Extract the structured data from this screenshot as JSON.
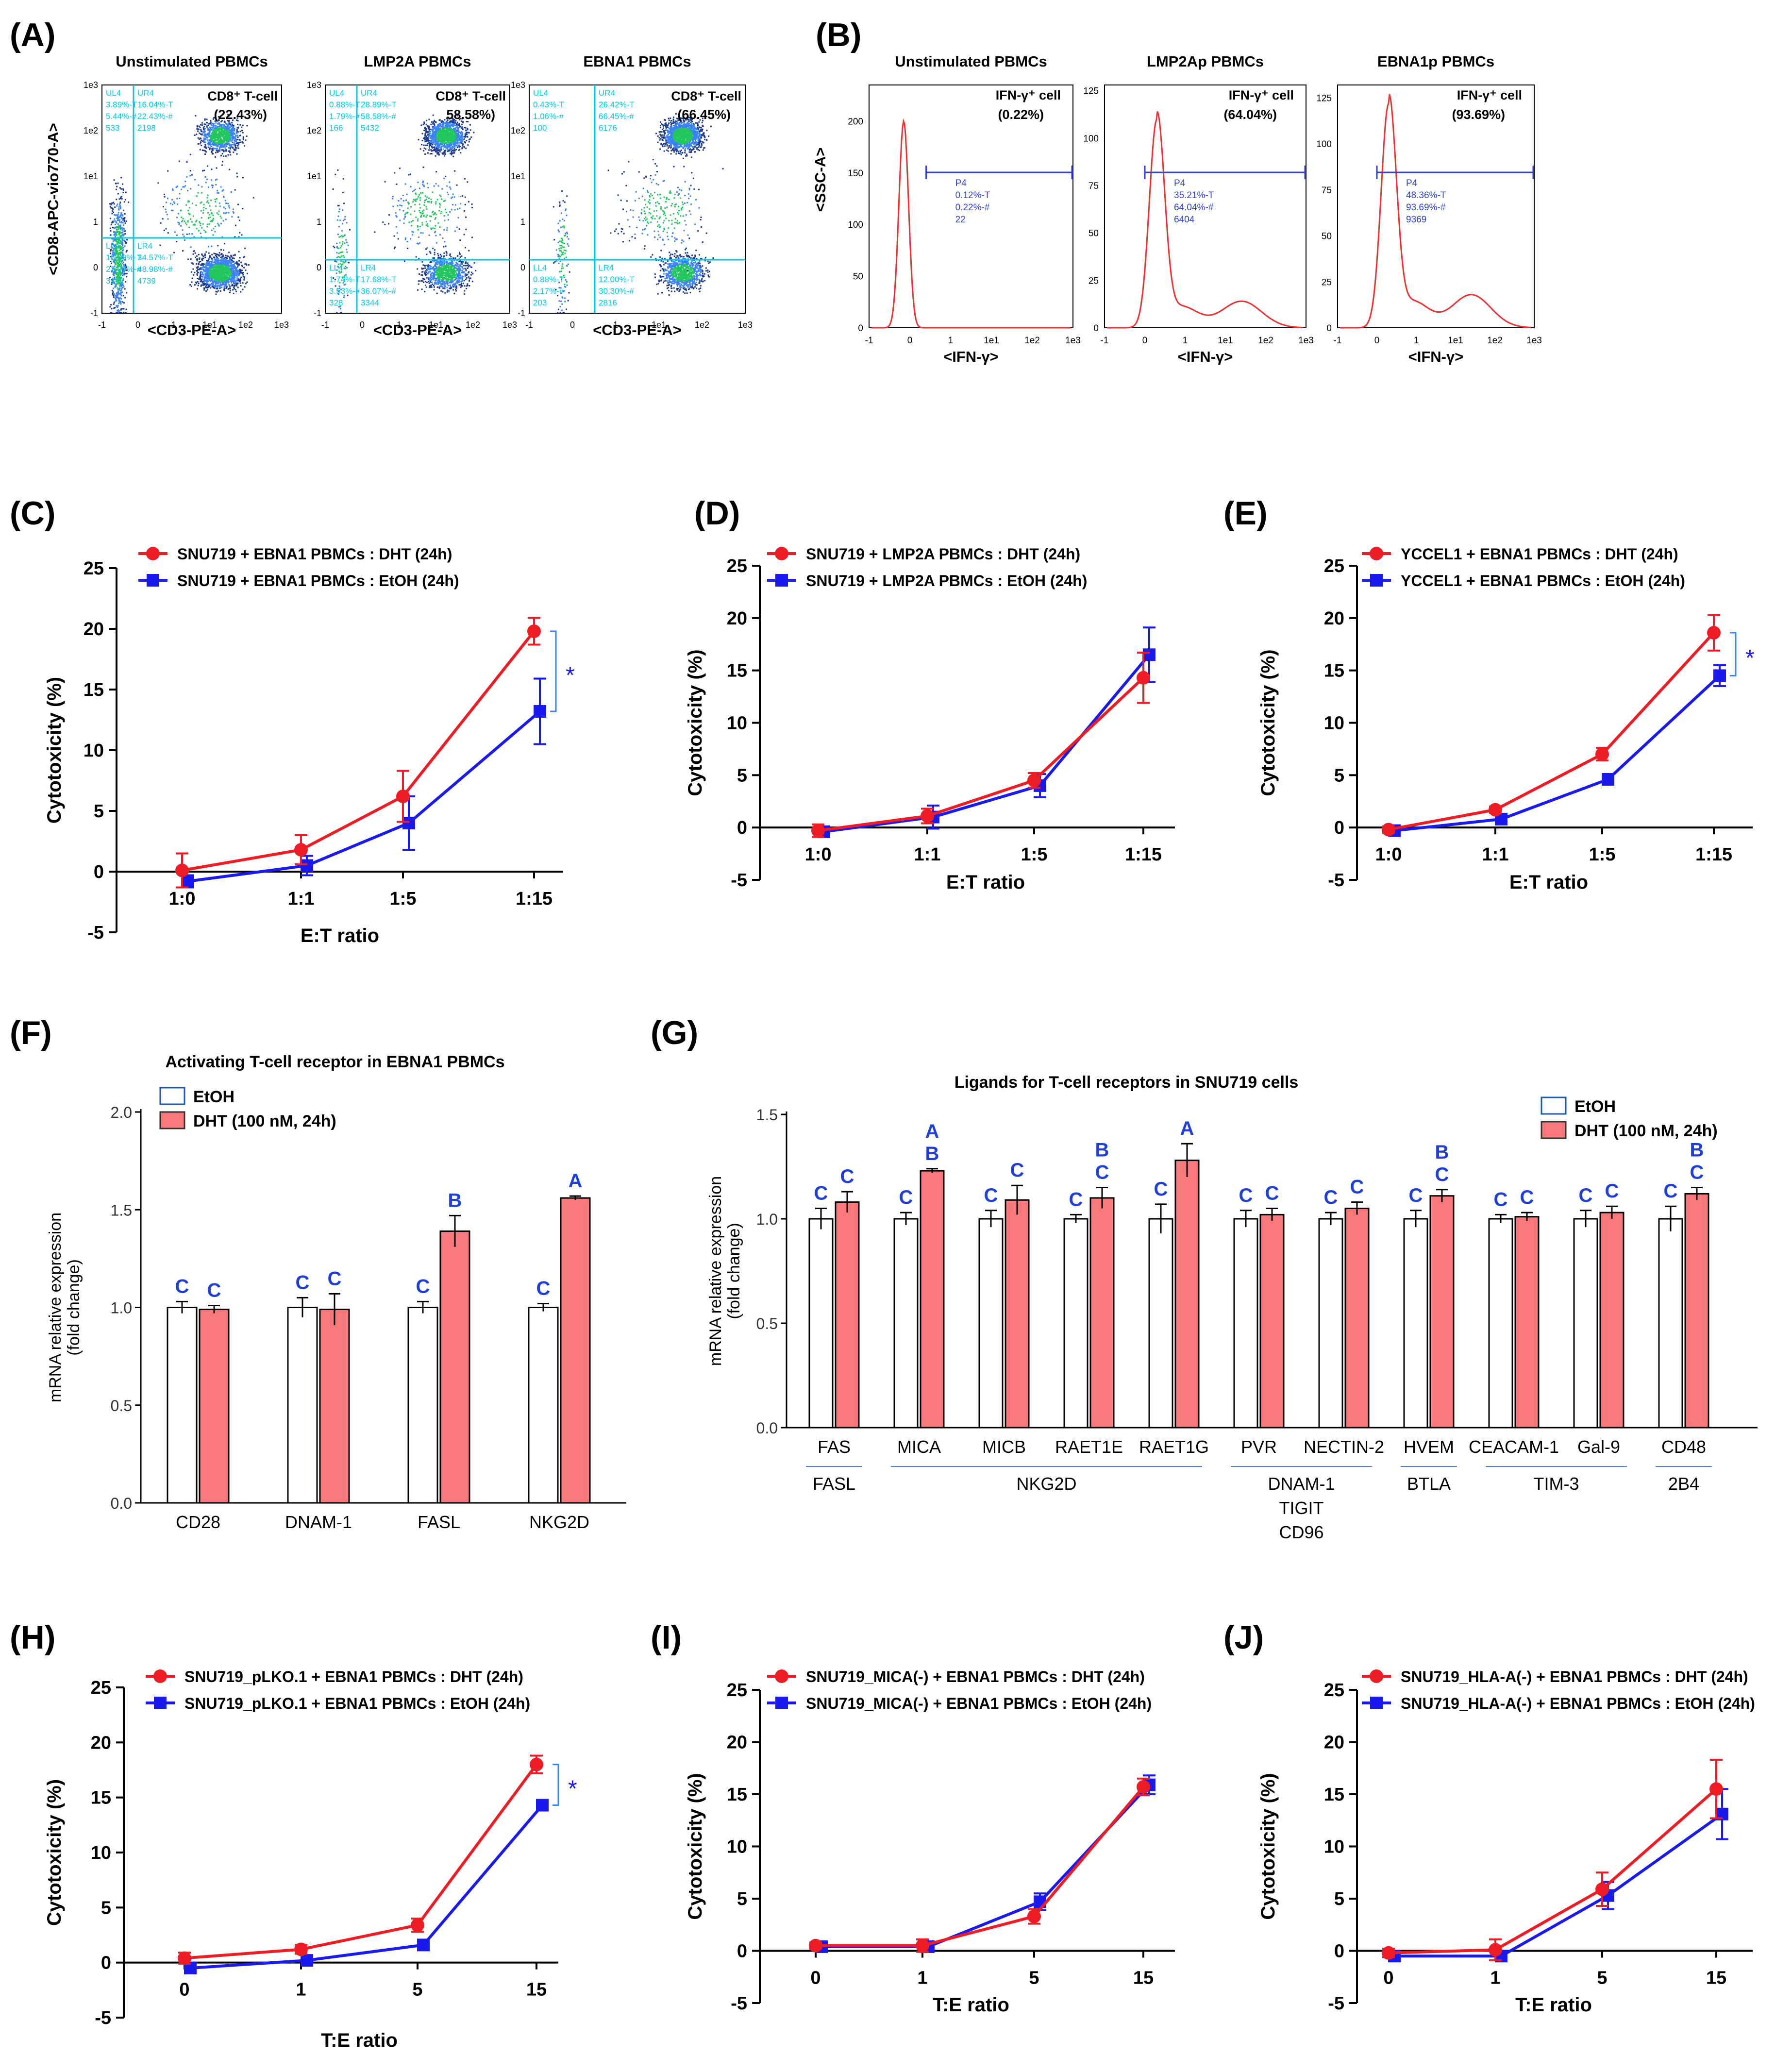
{
  "colors": {
    "red": "#ee1c24",
    "blue": "#1a1aee",
    "cyan": "#00c8e6",
    "bar_red": "#f7797b",
    "letter_blue": "#1f3fd8",
    "hist_red": "#f03030"
  },
  "A": {
    "label": "(A)",
    "panels": [
      {
        "title": "Unstimulated PBMCs",
        "gate_title": "CD8⁺ T-cell",
        "gate_value": "(22.43%)",
        "ul": [
          "UL4",
          "3.89%-T",
          "5.44%-#",
          "533"
        ],
        "ur": [
          "UR4",
          "16.04%-T",
          "22.43%-#",
          "2198"
        ],
        "ll": [
          "LL4",
          "16.09%-T",
          "23.07%-#",
          "3171"
        ],
        "lr": [
          "LR4",
          "34.57%-T",
          "48.98%-#",
          "4739"
        ]
      },
      {
        "title": "LMP2A PBMCs",
        "gate_title": "CD8⁺ T-cell",
        "gate_value": "58.58%)",
        "ul": [
          "UL4",
          "0.88%-T",
          "1.79%-#",
          "166"
        ],
        "ur": [
          "UR4",
          "28.89%-T",
          "58.58%-#",
          "5432"
        ],
        "ll": [
          "LL4",
          "1.74%-T",
          "3.53%-#",
          "328"
        ],
        "lr": [
          "LR4",
          "17.68%-T",
          "36.07%-#",
          "3344"
        ]
      },
      {
        "title": "EBNA1 PBMCs",
        "gate_title": "CD8⁺ T-cell",
        "gate_value": "(66.45%)",
        "ul": [
          "UL4",
          "0.43%-T",
          "1.06%-#",
          "100"
        ],
        "ur": [
          "UR4",
          "26.42%-T",
          "66.45%-#",
          "6176"
        ],
        "ll": [
          "LL4",
          "0.88%-T",
          "2.17%-#",
          "203"
        ],
        "lr": [
          "LR4",
          "12.00%-T",
          "30.30%-#",
          "2816"
        ]
      }
    ],
    "ylabel": "<CD8-APC-vio770-A>",
    "xlabel": "<CD3-PE-A>",
    "x_ticks": [
      "-1",
      "0",
      "1",
      "1e1",
      "1e2",
      "1e3"
    ],
    "y_ticks": [
      "-1",
      "0",
      "1",
      "1e1",
      "1e2",
      "1e3"
    ]
  },
  "B": {
    "label": "(B)",
    "panels": [
      {
        "title": "Unstimulated PBMCs",
        "gate_title": "IFN-γ⁺ cell",
        "gate_value": "(0.22%)",
        "gate_info": [
          "P4",
          "0.12%-T",
          "0.22%-#",
          "22"
        ],
        "y_ticks": [
          "0",
          "50",
          "100",
          "150",
          "200"
        ],
        "ymax": 235,
        "peak": 200,
        "shoulder": 0
      },
      {
        "title": "LMP2Ap PBMCs",
        "gate_title": "IFN-γ⁺ cell",
        "gate_value": "(64.04%)",
        "gate_info": [
          "P4",
          "35.21%-T",
          "64.04%-#",
          "6404"
        ],
        "y_ticks": [
          "0",
          "25",
          "50",
          "75",
          "100",
          "125"
        ],
        "ymax": 128,
        "peak": 110,
        "shoulder": 14
      },
      {
        "title": "EBNA1p PBMCs",
        "gate_title": "IFN-γ⁺ cell",
        "gate_value": "(93.69%)",
        "gate_info": [
          "P4",
          "48.36%-T",
          "93.69%-#",
          "9369"
        ],
        "y_ticks": [
          "0",
          "25",
          "50",
          "75",
          "100",
          "125"
        ],
        "ymax": 132,
        "peak": 122,
        "shoulder": 18
      }
    ],
    "ylabel": "<SSC-A>",
    "xlabel": "<IFN-γ>",
    "x_ticks": [
      "-1",
      "0",
      "1",
      "1e1",
      "1e2",
      "1e3"
    ]
  },
  "chart_data": [
    {
      "panel": "(C)",
      "type": "line",
      "x": [
        "1:0",
        "1:1",
        "1:5",
        "1:15"
      ],
      "xlabel": "E:T ratio",
      "ylabel": "Cytotoxicity (%)",
      "ylim": [
        -5,
        25
      ],
      "y_ticks": [
        "-5",
        "0",
        "5",
        "10",
        "15",
        "20",
        "25"
      ],
      "sig": "*",
      "series": [
        {
          "name": "SNU719 + EBNA1 PBMCs : DHT (24h)",
          "color": "red",
          "values": [
            0.1,
            1.8,
            6.2,
            19.8
          ],
          "err": [
            1.4,
            1.2,
            2.1,
            1.1
          ]
        },
        {
          "name": "SNU719 + EBNA1 PBMCs : EtOH (24h)",
          "color": "blue",
          "values": [
            -0.8,
            0.5,
            4.0,
            13.2
          ],
          "err": [
            0.5,
            0.8,
            2.2,
            2.7
          ]
        }
      ]
    },
    {
      "panel": "(D)",
      "type": "line",
      "x": [
        "1:0",
        "1:1",
        "1:5",
        "1:15"
      ],
      "xlabel": "E:T ratio",
      "ylabel": "Cytotoxicity (%)",
      "ylim": [
        -5,
        25
      ],
      "y_ticks": [
        "-5",
        "0",
        "5",
        "10",
        "15",
        "20",
        "25"
      ],
      "sig": "",
      "series": [
        {
          "name": "SNU719 + LMP2A PBMCs : DHT (24h)",
          "color": "red",
          "values": [
            -0.3,
            1.1,
            4.5,
            14.3
          ],
          "err": [
            0.6,
            0.7,
            0.7,
            2.4
          ]
        },
        {
          "name": "SNU719 + LMP2A PBMCs : EtOH (24h)",
          "color": "blue",
          "values": [
            -0.4,
            1.0,
            4.0,
            16.5
          ],
          "err": [
            0.5,
            1.1,
            1.1,
            2.6
          ]
        }
      ]
    },
    {
      "panel": "(E)",
      "type": "line",
      "x": [
        "1:0",
        "1:1",
        "1:5",
        "1:15"
      ],
      "xlabel": "E:T ratio",
      "ylabel": "Cytotoxicity (%)",
      "ylim": [
        -5,
        25
      ],
      "y_ticks": [
        "-5",
        "0",
        "5",
        "10",
        "15",
        "20",
        "25"
      ],
      "sig": "*",
      "series": [
        {
          "name": "YCCEL1 + EBNA1 PBMCs : DHT (24h)",
          "color": "red",
          "values": [
            -0.2,
            1.7,
            7.0,
            18.6
          ],
          "err": [
            0.3,
            0.3,
            0.6,
            1.7
          ]
        },
        {
          "name": "YCCEL1 + EBNA1 PBMCs : EtOH (24h)",
          "color": "blue",
          "values": [
            -0.3,
            0.8,
            4.6,
            14.5
          ],
          "err": [
            0.3,
            0.3,
            0.4,
            1.0
          ]
        }
      ]
    },
    {
      "panel": "(F)",
      "type": "bar",
      "title": "Activating T-cell receptor in EBNA1 PBMCs",
      "categories": [
        "CD28",
        "DNAM-1",
        "FASL",
        "NKG2D"
      ],
      "ylabel": "mRNA relative expression (fold change)",
      "ylim": [
        0,
        2.0
      ],
      "y_ticks": [
        "0.0",
        "0.5",
        "1.0",
        "1.5",
        "2.0"
      ],
      "legend": [
        "EtOH",
        "DHT (100 nM, 24h)"
      ],
      "series": [
        {
          "name": "EtOH",
          "values": [
            1.0,
            1.0,
            1.0,
            1.0
          ],
          "err": [
            0.03,
            0.05,
            0.03,
            0.02
          ],
          "letters": [
            "C",
            "C",
            "C",
            "C"
          ]
        },
        {
          "name": "DHT (100 nM, 24h)",
          "values": [
            0.99,
            0.99,
            1.39,
            1.56
          ],
          "err": [
            0.02,
            0.08,
            0.08,
            0.01
          ],
          "letters": [
            "C",
            "C",
            "B",
            "A"
          ]
        }
      ]
    },
    {
      "panel": "(G)",
      "type": "bar",
      "title": "Ligands for T-cell receptors in SNU719 cells",
      "categories": [
        "FAS",
        "MICA",
        "MICB",
        "RAET1E",
        "RAET1G",
        "PVR",
        "NECTIN-2",
        "HVEM",
        "CEACAM-1",
        "Gal-9",
        "CD48"
      ],
      "ylabel": "mRNA relative expression (fold change)",
      "ylim": [
        0,
        1.5
      ],
      "y_ticks": [
        "0.0",
        "0.5",
        "1.0",
        "1.5"
      ],
      "legend": [
        "EtOH",
        "DHT (100 nM, 24h)"
      ],
      "groups": [
        {
          "label": "FASL",
          "lines": [
            "FASL"
          ],
          "from": 0,
          "to": 0
        },
        {
          "label": "NKG2D",
          "lines": [
            "NKG2D"
          ],
          "from": 1,
          "to": 4
        },
        {
          "label": "DNAM-1 TIGIT CD96",
          "lines": [
            "DNAM-1",
            "TIGIT",
            "CD96"
          ],
          "from": 5,
          "to": 6
        },
        {
          "label": "BTLA",
          "lines": [
            "BTLA"
          ],
          "from": 7,
          "to": 7
        },
        {
          "label": "TIM-3",
          "lines": [
            "TIM-3"
          ],
          "from": 8,
          "to": 9
        },
        {
          "label": "2B4",
          "lines": [
            "2B4"
          ],
          "from": 10,
          "to": 10
        }
      ],
      "series": [
        {
          "name": "EtOH",
          "values": [
            1.0,
            1.0,
            1.0,
            1.0,
            1.0,
            1.0,
            1.0,
            1.0,
            1.0,
            1.0,
            1.0
          ],
          "err": [
            0.05,
            0.03,
            0.04,
            0.02,
            0.07,
            0.04,
            0.03,
            0.04,
            0.02,
            0.04,
            0.06
          ],
          "letters": [
            "C",
            "C",
            "C",
            "C",
            "C",
            "C",
            "C",
            "C",
            "C",
            "C",
            "C"
          ]
        },
        {
          "name": "DHT (100 nM, 24h)",
          "values": [
            1.08,
            1.23,
            1.09,
            1.1,
            1.28,
            1.02,
            1.05,
            1.11,
            1.01,
            1.03,
            1.12
          ],
          "err": [
            0.05,
            0.01,
            0.07,
            0.05,
            0.08,
            0.03,
            0.03,
            0.03,
            0.02,
            0.03,
            0.03
          ],
          "letters": [
            "C",
            "A B",
            "C",
            "B C",
            "A",
            "C",
            "C",
            "B C",
            "C",
            "C",
            "B C"
          ]
        }
      ]
    },
    {
      "panel": "(H)",
      "type": "line",
      "x": [
        "0",
        "1",
        "5",
        "15"
      ],
      "xlabel": "T:E ratio",
      "ylabel": "Cytotoxicity (%)",
      "ylim": [
        -5,
        25
      ],
      "y_ticks": [
        "-5",
        "0",
        "5",
        "10",
        "15",
        "20",
        "25"
      ],
      "sig": "*",
      "series": [
        {
          "name": "SNU719_pLKO.1 + EBNA1 PBMCs : DHT (24h)",
          "color": "red",
          "values": [
            0.4,
            1.2,
            3.4,
            18.0
          ],
          "err": [
            0.5,
            0.4,
            0.6,
            0.8
          ]
        },
        {
          "name": "SNU719_pLKO.1 + EBNA1 PBMCs : EtOH (24h)",
          "color": "blue",
          "values": [
            -0.5,
            0.2,
            1.6,
            14.3
          ],
          "err": [
            0.3,
            0.3,
            0.3,
            0.4
          ]
        }
      ]
    },
    {
      "panel": "(I)",
      "type": "line",
      "x": [
        "0",
        "1",
        "5",
        "15"
      ],
      "xlabel": "T:E ratio",
      "ylabel": "Cytotoxicity (%)",
      "ylim": [
        -5,
        25
      ],
      "y_ticks": [
        "-5",
        "0",
        "5",
        "10",
        "15",
        "20",
        "25"
      ],
      "sig": "",
      "series": [
        {
          "name": "SNU719_MICA(-) + EBNA1 PBMCs : DHT (24h)",
          "color": "red",
          "values": [
            0.5,
            0.5,
            3.3,
            15.7
          ],
          "err": [
            0.3,
            0.6,
            0.7,
            0.8
          ]
        },
        {
          "name": "SNU719_MICA(-) + EBNA1 PBMCs : EtOH (24h)",
          "color": "blue",
          "values": [
            0.4,
            0.4,
            4.7,
            15.9
          ],
          "err": [
            0.3,
            0.4,
            0.8,
            0.9
          ]
        }
      ]
    },
    {
      "panel": "(J)",
      "type": "line",
      "x": [
        "0",
        "1",
        "5",
        "15"
      ],
      "xlabel": "T:E ratio",
      "ylabel": "Cytotoxicity (%)",
      "ylim": [
        -5,
        25
      ],
      "y_ticks": [
        "-5",
        "0",
        "5",
        "10",
        "15",
        "20",
        "25"
      ],
      "sig": "",
      "series": [
        {
          "name": "SNU719_HLA-A(-) + EBNA1 PBMCs : DHT (24h)",
          "color": "red",
          "values": [
            -0.2,
            0.1,
            5.9,
            15.5
          ],
          "err": [
            0.4,
            1.0,
            1.6,
            2.8
          ]
        },
        {
          "name": "SNU719_HLA-A(-) + EBNA1 PBMCs : EtOH (24h)",
          "color": "blue",
          "values": [
            -0.5,
            -0.5,
            5.3,
            13.1
          ],
          "err": [
            0.3,
            0.4,
            1.3,
            2.4
          ]
        }
      ]
    }
  ]
}
